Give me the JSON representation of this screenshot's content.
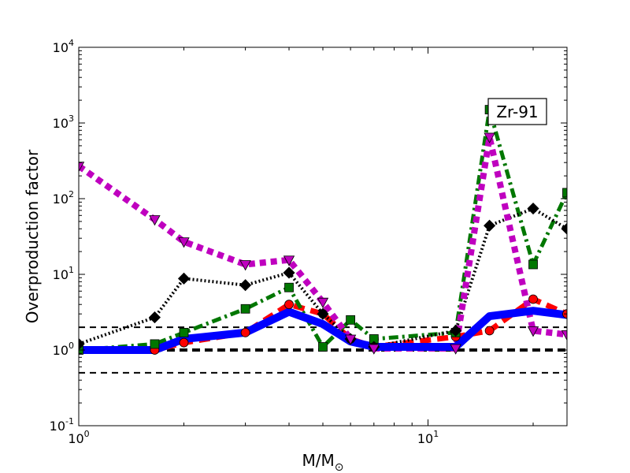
{
  "chart_data": {
    "type": "line",
    "xscale": "log",
    "yscale": "log",
    "xlim": [
      1,
      25
    ],
    "ylim": [
      0.1,
      10000
    ],
    "xlabel": {
      "base": "M/M",
      "sub": "⊙"
    },
    "ylabel": "Overproduction factor",
    "x_ticks": [
      {
        "value": 1,
        "base": "10",
        "exp": "0"
      },
      {
        "value": 10,
        "base": "10",
        "exp": "1"
      }
    ],
    "y_ticks": [
      {
        "value": 0.1,
        "base": "10",
        "exp": "-1"
      },
      {
        "value": 1,
        "base": "10",
        "exp": "0"
      },
      {
        "value": 10,
        "base": "10",
        "exp": "1"
      },
      {
        "value": 100,
        "base": "10",
        "exp": "2"
      },
      {
        "value": 1000,
        "base": "10",
        "exp": "3"
      },
      {
        "value": 10000,
        "base": "10",
        "exp": "4"
      }
    ],
    "annotation": "Zr-91",
    "reference_lines": [
      {
        "y": 2,
        "style": "thin-dashed"
      },
      {
        "y": 1,
        "style": "thick-dashed"
      },
      {
        "y": 0.5,
        "style": "thin-dashed"
      }
    ],
    "series": [
      {
        "color": "#0000ff",
        "marker": "none",
        "line": "solid-thick",
        "x": [
          1,
          1.65,
          2,
          3,
          4,
          5,
          6,
          7,
          12,
          15,
          20,
          25
        ],
        "y": [
          1.0,
          1.0,
          1.4,
          1.7,
          3.2,
          2.2,
          1.3,
          1.1,
          1.1,
          2.8,
          3.3,
          2.9
        ]
      },
      {
        "color": "#ff0000",
        "marker": "circle",
        "line": "dashed",
        "x": [
          1,
          1.65,
          2,
          3,
          4,
          5,
          6,
          7,
          12,
          15,
          20,
          25
        ],
        "y": [
          1.0,
          1.0,
          1.25,
          1.7,
          4.0,
          3.0,
          1.4,
          1.1,
          1.5,
          1.8,
          4.7,
          3.0
        ]
      },
      {
        "color": "#007700",
        "marker": "square",
        "line": "dash-dot",
        "x": [
          1,
          1.65,
          2,
          3,
          4,
          5,
          6,
          7,
          12,
          15,
          20,
          25
        ],
        "y": [
          1.0,
          1.2,
          1.7,
          3.5,
          6.7,
          1.1,
          2.5,
          1.4,
          1.7,
          1500,
          13.5,
          120
        ]
      },
      {
        "color": "#000000",
        "marker": "diamond",
        "line": "dotted",
        "x": [
          1,
          1.65,
          2,
          3,
          4,
          5,
          6,
          7,
          12,
          15,
          20,
          25
        ],
        "y": [
          1.2,
          2.7,
          8.8,
          7.2,
          10.5,
          3.0,
          1.4,
          1.1,
          1.8,
          44,
          74,
          40
        ]
      },
      {
        "color": "#bf00bf",
        "marker": "triangle-down",
        "line": "dotted-thick",
        "x": [
          1,
          1.65,
          2,
          3,
          4,
          5,
          6,
          7,
          12,
          15,
          20,
          25
        ],
        "y": [
          270,
          53,
          27,
          13.5,
          15.5,
          4.3,
          1.4,
          1.05,
          1.05,
          650,
          1.8,
          1.6
        ]
      }
    ]
  }
}
